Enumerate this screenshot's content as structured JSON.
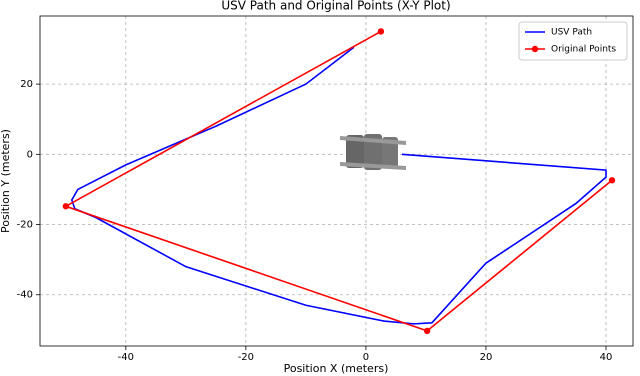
{
  "chart_data": {
    "type": "line",
    "title": "USV Path and Original Points (X-Y Plot)",
    "x_label": "Position X (meters)",
    "y_label": "Position Y (meters)",
    "xlim": [
      -54.3,
      44.5
    ],
    "ylim": [
      -54.6,
      39.4
    ],
    "xticks": [
      -40,
      -20,
      0,
      20,
      40
    ],
    "yticks": [
      -40,
      -20,
      0,
      20
    ],
    "grid": true,
    "legend": "upper right",
    "series": [
      {
        "name": "USV Path",
        "color": "#0000ff",
        "marker": false,
        "x": [
          6,
          40,
          40,
          35,
          20,
          11,
          8,
          3,
          -10,
          -30,
          -45,
          -48.5,
          -49,
          -48,
          -40,
          -25,
          -10,
          -2
        ],
        "y": [
          0,
          -4.5,
          -6.5,
          -14,
          -31,
          -48,
          -48.3,
          -47.5,
          -43,
          -32,
          -18,
          -15.5,
          -13,
          -10,
          -3,
          8,
          20,
          30.5
        ]
      },
      {
        "name": "Original Points",
        "color": "#ff0000",
        "marker": true,
        "x": [
          2.5,
          -50,
          10.2,
          41
        ],
        "y": [
          35,
          -14.8,
          -50.3,
          -7.4
        ]
      }
    ]
  }
}
